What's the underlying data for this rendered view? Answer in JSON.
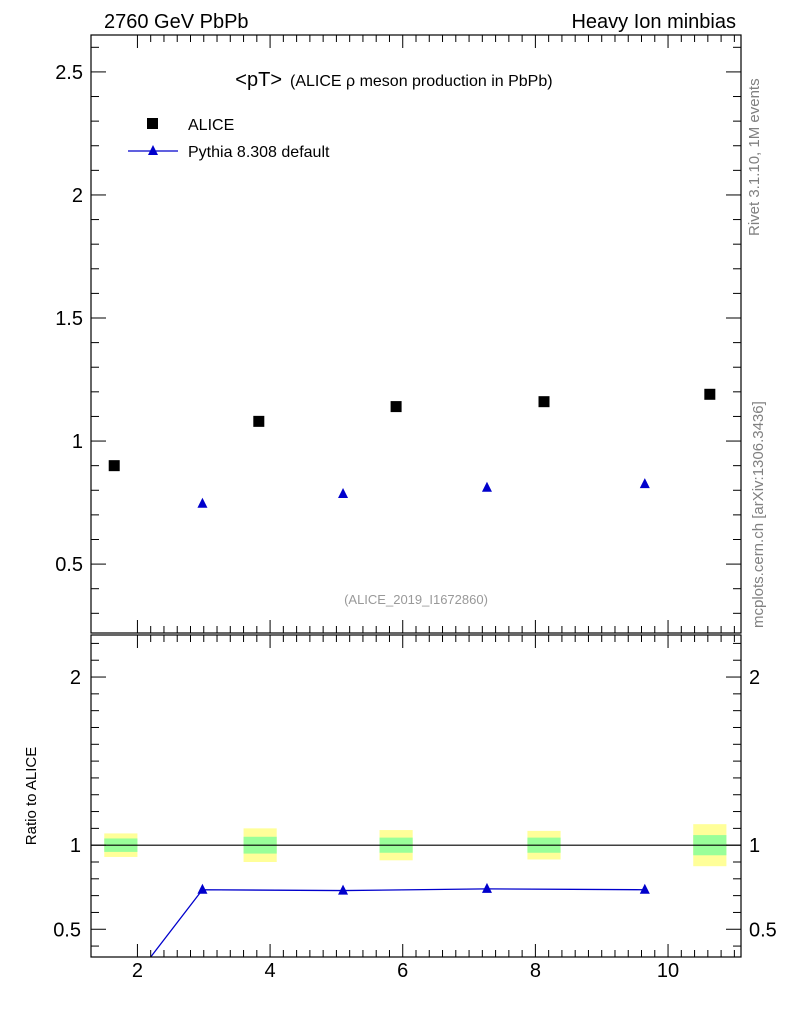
{
  "header": {
    "left": "2760 GeV PbPb",
    "right": "Heavy Ion minbias"
  },
  "side_labels": {
    "rivet": "Rivet 3.1.10,  1M events",
    "mcplots": "mcplots.cern.ch [arXiv:1306.3436]"
  },
  "colors": {
    "data": "#000000",
    "mc": "#0000cc",
    "band_inner": "#99ff99",
    "band_outer": "#ffff99",
    "watermark": "#999999"
  },
  "chart_data": [
    {
      "type": "scatter",
      "title_main": "<pT>",
      "title_sub": "(ALICE ρ meson production in PbPb)",
      "watermark": "(ALICE_2019_I1672860)",
      "xlim": [
        1.3,
        11.1
      ],
      "ylim": [
        0.22,
        2.65
      ],
      "yticks": [
        0.5,
        1,
        1.5,
        2,
        2.5
      ],
      "ytick_labels": [
        "0.5",
        "1",
        "1.5",
        "2",
        "2.5"
      ],
      "legend_placement": "top-left",
      "series": [
        {
          "name": "ALICE",
          "marker": "square",
          "x": [
            1.65,
            3.83,
            5.9,
            8.13,
            10.63
          ],
          "y": [
            0.9,
            1.08,
            1.14,
            1.16,
            1.19
          ]
        },
        {
          "name": "Pythia 8.308 default",
          "marker": "triangle",
          "x": [
            2.98,
            5.1,
            7.27,
            9.65
          ],
          "y": [
            0.745,
            0.785,
            0.81,
            0.825
          ]
        }
      ]
    },
    {
      "type": "line",
      "ylabel": "Ratio to ALICE",
      "xlim": [
        1.3,
        11.1
      ],
      "ylim": [
        0.335,
        2.25
      ],
      "xticks": [
        2,
        4,
        6,
        8,
        10
      ],
      "xtick_labels": [
        "2",
        "4",
        "6",
        "8",
        "10"
      ],
      "yticks": [
        0.5,
        1,
        2
      ],
      "ytick_labels": [
        "0.5",
        "1",
        "2"
      ],
      "reference_line": 1,
      "bands": [
        {
          "x0": 1.5,
          "x1": 2.0,
          "inner": [
            0.96,
            1.04
          ],
          "outer": [
            0.93,
            1.07
          ]
        },
        {
          "x0": 3.6,
          "x1": 4.1,
          "inner": [
            0.95,
            1.05
          ],
          "outer": [
            0.9,
            1.1
          ]
        },
        {
          "x0": 5.65,
          "x1": 6.15,
          "inner": [
            0.955,
            1.045
          ],
          "outer": [
            0.91,
            1.09
          ]
        },
        {
          "x0": 7.88,
          "x1": 8.38,
          "inner": [
            0.955,
            1.045
          ],
          "outer": [
            0.915,
            1.085
          ]
        },
        {
          "x0": 10.38,
          "x1": 10.88,
          "inner": [
            0.94,
            1.06
          ],
          "outer": [
            0.875,
            1.125
          ]
        }
      ],
      "series": [
        {
          "name": "Pythia 8.308 default",
          "x": [
            2.2,
            2.98,
            5.1,
            7.27,
            9.65
          ],
          "y": [
            0.335,
            0.735,
            0.73,
            0.74,
            0.735
          ],
          "marker_x": [
            2.98,
            5.1,
            7.27,
            9.65
          ],
          "marker_y": [
            0.735,
            0.73,
            0.74,
            0.735
          ]
        }
      ]
    }
  ]
}
